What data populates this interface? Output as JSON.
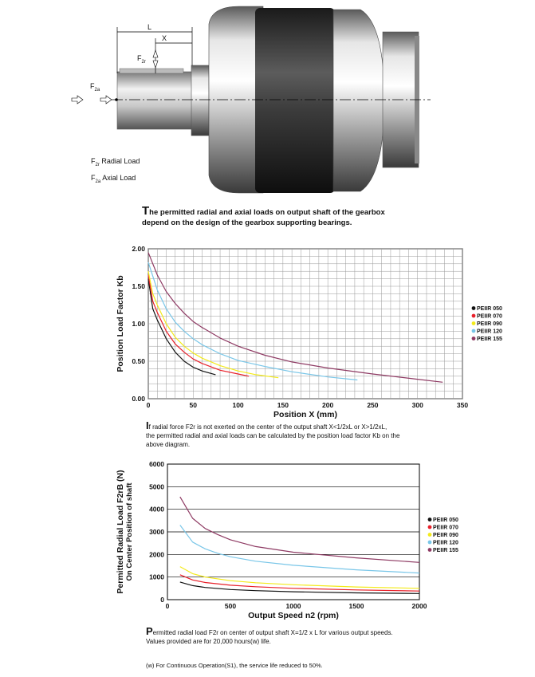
{
  "figure": {
    "dim_L": "L",
    "dim_X": "X",
    "label_F2r": "F",
    "label_F2r_sub": "2r",
    "label_F2a": "F",
    "label_F2a_sub": "2a",
    "legend_radial_F": "F",
    "legend_radial_sub": "2r",
    "legend_radial_text": "Radial Load",
    "legend_axial_F": "F",
    "legend_axial_sub": "2a",
    "legend_axial_text": "Axial Load"
  },
  "caption1": {
    "drop": "T",
    "text1": "he permitted radial and axial loads on output shaft of the gearbox",
    "text2": "depend on the design of the gearbox supporting bearings."
  },
  "note1": {
    "drop": "I",
    "line1": "f radial force F2r is not exerted on the center of the  output shaft X<1/2xL or X>1/2xL,",
    "line2": "the permitted radial and axial loads can be calculated by the position load factor Kb on the",
    "line3": "above diagram."
  },
  "note2": {
    "drop": "P",
    "line1": "ermitted radial load F2r on center of output shaft X=1/2 x L for various output speeds.",
    "line2": "Values provided are for 20,000 hours(w) life."
  },
  "footnote": "(w) For Continuous Operation(S1), the service life reduced to 50%.",
  "colors": {
    "PEIIR 050": "#111111",
    "PEIIR 070": "#e8202a",
    "PEIIR 090": "#f3ea1a",
    "PEIIR 120": "#79c6e8",
    "PEIIR 155": "#8e3a63"
  },
  "chart_data": [
    {
      "type": "line",
      "xlabel": "Position X (mm)",
      "ylabel": "Position Load Factor Kb",
      "xlim": [
        0,
        350
      ],
      "ylim": [
        0,
        2.0
      ],
      "xticks": [
        "0",
        "50",
        "100",
        "150",
        "200",
        "250",
        "300",
        "350"
      ],
      "yticks": [
        "0.00",
        "0.50",
        "1.00",
        "1.50",
        "2.00"
      ],
      "grid": true,
      "legend_position": "right",
      "series": [
        {
          "name": "PEIIR 050",
          "x": [
            0,
            5,
            10,
            20,
            30,
            40,
            50,
            60,
            75
          ],
          "y": [
            1.6,
            1.2,
            1.05,
            0.8,
            0.62,
            0.5,
            0.42,
            0.37,
            0.32
          ]
        },
        {
          "name": "PEIIR 070",
          "x": [
            0,
            5,
            10,
            20,
            30,
            40,
            50,
            60,
            80,
            100,
            112
          ],
          "y": [
            1.65,
            1.3,
            1.15,
            0.9,
            0.73,
            0.62,
            0.53,
            0.47,
            0.38,
            0.33,
            0.3
          ]
        },
        {
          "name": "PEIIR 090",
          "x": [
            0,
            5,
            10,
            20,
            30,
            40,
            50,
            60,
            80,
            100,
            120,
            145
          ],
          "y": [
            1.7,
            1.4,
            1.25,
            1.0,
            0.82,
            0.7,
            0.61,
            0.54,
            0.44,
            0.37,
            0.32,
            0.28
          ]
        },
        {
          "name": "PEIIR 120",
          "x": [
            0,
            10,
            20,
            30,
            40,
            50,
            60,
            80,
            100,
            130,
            160,
            200,
            233
          ],
          "y": [
            1.82,
            1.45,
            1.2,
            1.02,
            0.9,
            0.8,
            0.72,
            0.6,
            0.51,
            0.43,
            0.36,
            0.29,
            0.25
          ]
        },
        {
          "name": "PEIIR 155",
          "x": [
            0,
            10,
            20,
            30,
            40,
            50,
            60,
            80,
            100,
            130,
            160,
            200,
            250,
            300,
            328
          ],
          "y": [
            1.95,
            1.65,
            1.43,
            1.27,
            1.14,
            1.03,
            0.95,
            0.81,
            0.7,
            0.58,
            0.49,
            0.41,
            0.33,
            0.26,
            0.22
          ]
        }
      ]
    },
    {
      "type": "line",
      "xlabel": "Output Speed n2 (rpm)",
      "ylabel": "Permitted Radial Load F2rB (N)",
      "ylabel2": "On Center Position of shaft",
      "xlim": [
        0,
        2000
      ],
      "ylim": [
        0,
        6000
      ],
      "xticks": [
        "0",
        "500",
        "1000",
        "1500",
        "2000"
      ],
      "yticks": [
        "0",
        "1000",
        "2000",
        "3000",
        "4000",
        "5000",
        "6000"
      ],
      "grid": true,
      "legend_position": "right",
      "series": [
        {
          "name": "PEIIR 050",
          "x": [
            100,
            200,
            300,
            500,
            700,
            1000,
            1500,
            2000
          ],
          "y": [
            780,
            620,
            540,
            450,
            400,
            350,
            300,
            270
          ]
        },
        {
          "name": "PEIIR 070",
          "x": [
            100,
            200,
            300,
            500,
            700,
            1000,
            1500,
            2000
          ],
          "y": [
            1100,
            870,
            760,
            640,
            570,
            500,
            430,
            380
          ]
        },
        {
          "name": "PEIIR 090",
          "x": [
            100,
            200,
            300,
            500,
            700,
            1000,
            1500,
            2000
          ],
          "y": [
            1460,
            1150,
            1000,
            840,
            750,
            660,
            560,
            500
          ]
        },
        {
          "name": "PEIIR 120",
          "x": [
            100,
            200,
            300,
            400,
            500,
            700,
            1000,
            1500,
            2000
          ],
          "y": [
            3300,
            2550,
            2250,
            2050,
            1900,
            1700,
            1520,
            1320,
            1180
          ]
        },
        {
          "name": "PEIIR 155",
          "x": [
            100,
            200,
            300,
            400,
            500,
            700,
            1000,
            1500,
            2000
          ],
          "y": [
            4550,
            3600,
            3150,
            2880,
            2650,
            2350,
            2100,
            1850,
            1650
          ]
        }
      ]
    }
  ]
}
